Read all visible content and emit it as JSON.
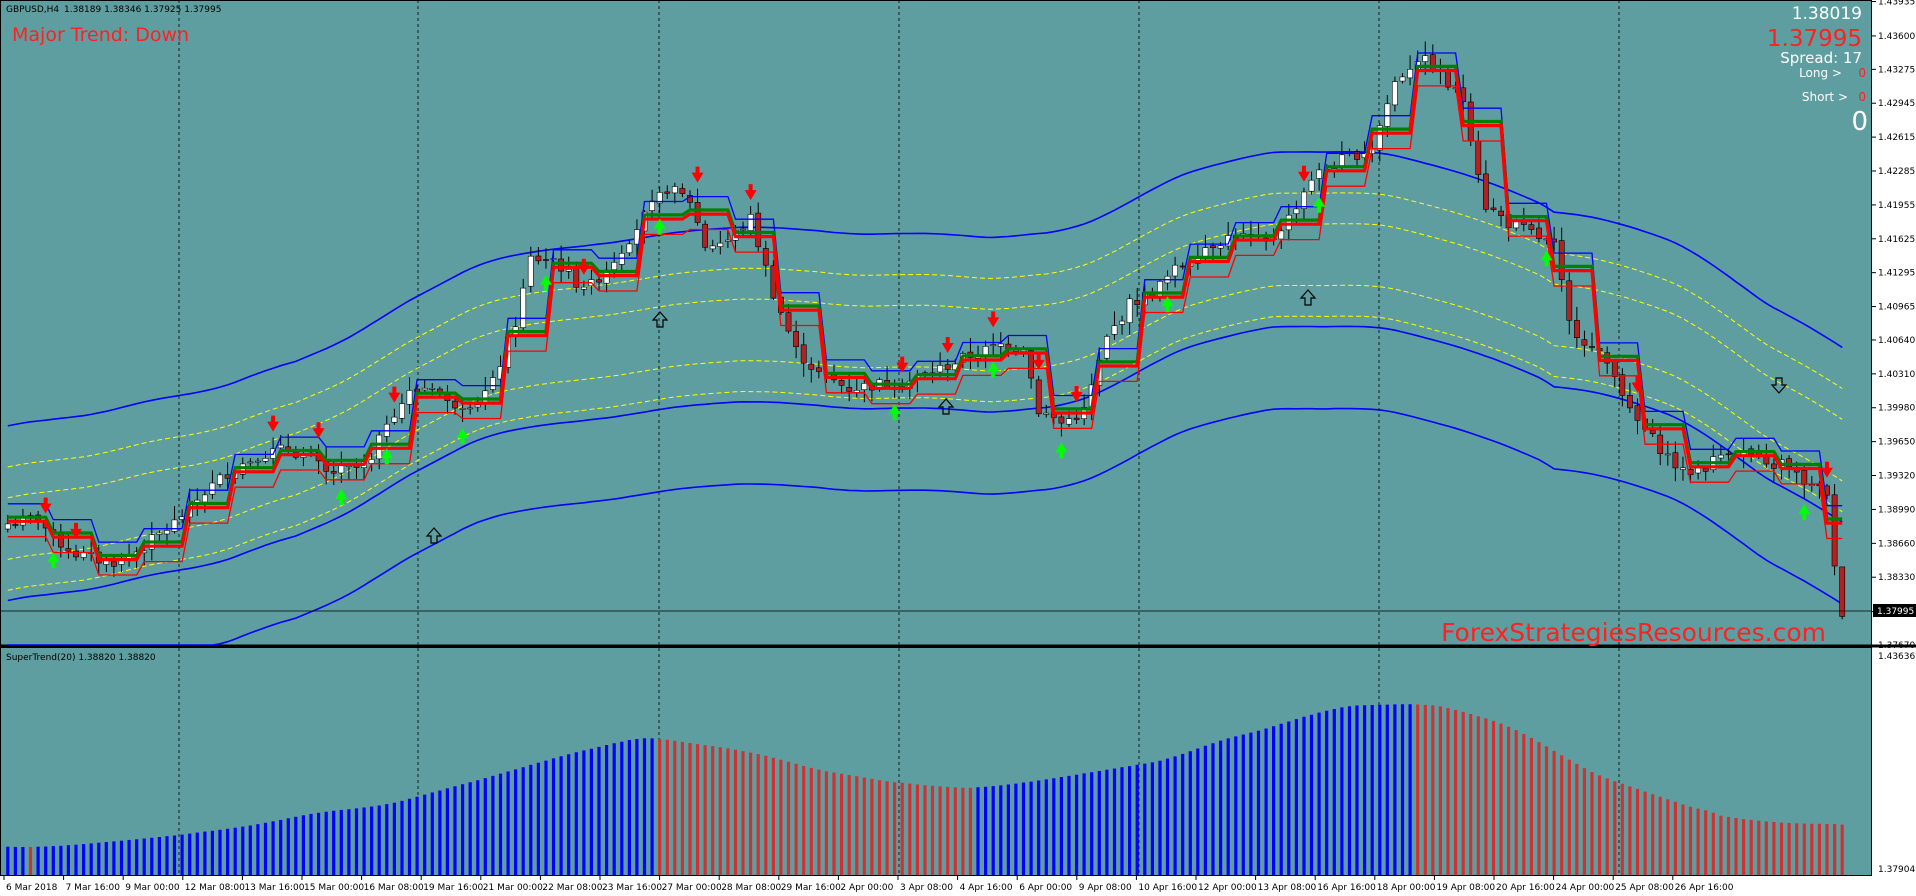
{
  "header": {
    "symbol": "GBPUSD,H4",
    "ohlc": "1.38189 1.38346 1.37925 1.37995"
  },
  "trend": {
    "text": "Major Trend: Down"
  },
  "info": {
    "bid": "1.38019",
    "ask": "1.37995",
    "spread": "Spread: 17",
    "long_label": "Long >",
    "long_value": "0",
    "short_label": "Short >",
    "short_value": "0",
    "total": "0"
  },
  "watermark": "ForexStrategiesResources.com",
  "indicator": {
    "label": "SuperTrend(20) 1.38820 1.38820",
    "scale_top": "1.43636",
    "scale_bottom": "1.37904"
  },
  "colors": {
    "background": "#5f9ea0",
    "grid": "#1a1a1a",
    "bull": "#ffffff",
    "bear": "#b22222",
    "supertrend_up": "#0000ff",
    "supertrend_down": "#cd3333",
    "trend_up": "#008000",
    "trend_down": "#ff0000",
    "arrow_buy": "#00ff00",
    "arrow_sell": "#ff0000",
    "envelope": "#0000ff",
    "band": "#ffff00"
  },
  "chart_data": {
    "type": "candlestick",
    "symbol": "GBPUSD",
    "timeframe": "H4",
    "price_axis_labels": [
      "1.43935",
      "1.43600",
      "1.43275",
      "1.42945",
      "1.42615",
      "1.42285",
      "1.41955",
      "1.41625",
      "1.41295",
      "1.40965",
      "1.40640",
      "1.40310",
      "1.39980",
      "1.39650",
      "1.39320",
      "1.38990",
      "1.38660",
      "1.38330",
      "1.37995",
      "1.37670"
    ],
    "time_axis_labels": [
      "6 Mar 2018",
      "7 Mar 16:00",
      "9 Mar 00:00",
      "12 Mar 08:00",
      "13 Mar 16:00",
      "15 Mar 00:00",
      "16 Mar 08:00",
      "19 Mar 16:00",
      "21 Mar 00:00",
      "22 Mar 08:00",
      "23 Mar 16:00",
      "27 Mar 00:00",
      "28 Mar 08:00",
      "29 Mar 16:00",
      "2 Apr 00:00",
      "3 Apr 08:00",
      "4 Apr 16:00",
      "6 Apr 00:00",
      "9 Apr 08:00",
      "10 Apr 16:00",
      "12 Apr 00:00",
      "13 Apr 08:00",
      "16 Apr 16:00",
      "18 Apr 00:00",
      "19 Apr 08:00",
      "20 Apr 16:00",
      "24 Apr 00:00",
      "25 Apr 08:00",
      "26 Apr 16:00"
    ],
    "price_range": [
      1.3767,
      1.4395
    ],
    "indicator_range": [
      1.37904,
      1.43636
    ],
    "current_price": 1.37995,
    "price_path": [
      [
        0,
        1.3885
      ],
      [
        4,
        1.3891
      ],
      [
        6,
        1.3871
      ],
      [
        9,
        1.3856
      ],
      [
        13,
        1.3848
      ],
      [
        15,
        1.3849
      ],
      [
        18,
        1.3863
      ],
      [
        22,
        1.3886
      ],
      [
        26,
        1.3916
      ],
      [
        29,
        1.3935
      ],
      [
        33,
        1.3952
      ],
      [
        37,
        1.3958
      ],
      [
        40,
        1.3949
      ],
      [
        42,
        1.3934
      ],
      [
        46,
        1.3939
      ],
      [
        48,
        1.3945
      ],
      [
        50,
        1.3986
      ],
      [
        53,
        1.4012
      ],
      [
        56,
        1.4021
      ],
      [
        58,
        1.4002
      ],
      [
        62,
        1.4004
      ],
      [
        64,
        1.4022
      ],
      [
        67,
        1.4081
      ],
      [
        69,
        1.4143
      ],
      [
        72,
        1.4143
      ],
      [
        75,
        1.412
      ],
      [
        77,
        1.4117
      ],
      [
        80,
        1.4143
      ],
      [
        84,
        1.4184
      ],
      [
        87,
        1.4212
      ],
      [
        90,
        1.42
      ],
      [
        92,
        1.4156
      ],
      [
        95,
        1.4161
      ],
      [
        98,
        1.4182
      ],
      [
        101,
        1.411
      ],
      [
        104,
        1.4054
      ],
      [
        107,
        1.4031
      ],
      [
        111,
        1.4017
      ],
      [
        115,
        1.4021
      ],
      [
        119,
        1.4024
      ],
      [
        123,
        1.4036
      ],
      [
        127,
        1.4049
      ],
      [
        131,
        1.4059
      ],
      [
        134,
        1.4058
      ],
      [
        136,
        1.3996
      ],
      [
        139,
        1.3983
      ],
      [
        142,
        1.3995
      ],
      [
        145,
        1.4065
      ],
      [
        148,
        1.4099
      ],
      [
        151,
        1.411
      ],
      [
        154,
        1.4132
      ],
      [
        158,
        1.4155
      ],
      [
        162,
        1.4167
      ],
      [
        166,
        1.4157
      ],
      [
        169,
        1.4183
      ],
      [
        172,
        1.4222
      ],
      [
        176,
        1.4239
      ],
      [
        180,
        1.4252
      ],
      [
        183,
        1.4315
      ],
      [
        186,
        1.4339
      ],
      [
        188,
        1.4331
      ],
      [
        190,
        1.4312
      ],
      [
        192,
        1.4298
      ],
      [
        195,
        1.4195
      ],
      [
        198,
        1.4178
      ],
      [
        201,
        1.4168
      ],
      [
        204,
        1.4155
      ],
      [
        206,
        1.408
      ],
      [
        209,
        1.4056
      ],
      [
        212,
        1.4034
      ],
      [
        214,
        1.3993
      ],
      [
        218,
        1.3959
      ],
      [
        221,
        1.3934
      ],
      [
        224,
        1.3941
      ],
      [
        227,
        1.3958
      ],
      [
        230,
        1.3952
      ],
      [
        232,
        1.3939
      ],
      [
        234,
        1.3945
      ],
      [
        236,
        1.3932
      ],
      [
        238,
        1.392
      ],
      [
        240,
        1.3916
      ],
      [
        241,
        1.384
      ],
      [
        242,
        1.38
      ]
    ],
    "indicator_bars": "SuperTrend(20) histogram with blue (up) and red (down) bars"
  }
}
